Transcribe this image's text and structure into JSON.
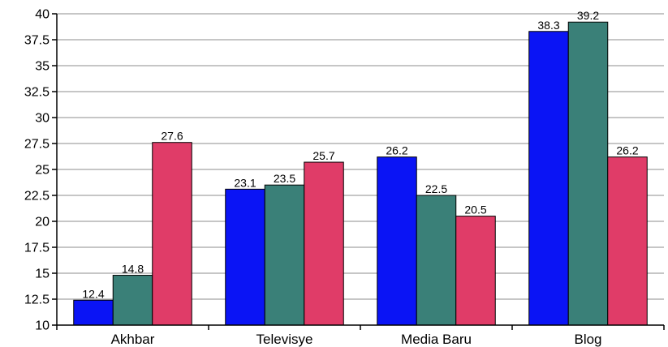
{
  "chart_data": {
    "type": "bar",
    "categories": [
      "Akhbar",
      "Televisye",
      "Media Baru",
      "Blog"
    ],
    "series": [
      {
        "color": "#0a14f5",
        "values": [
          12.4,
          23.1,
          26.2,
          38.3
        ]
      },
      {
        "color": "#3a8078",
        "values": [
          14.8,
          23.5,
          22.5,
          39.2
        ]
      },
      {
        "color": "#e03c68",
        "values": [
          27.6,
          25.7,
          20.5,
          26.2
        ]
      }
    ],
    "ylim": [
      10,
      40
    ],
    "yticks": [
      10,
      12.5,
      15,
      17.5,
      20,
      22.5,
      25,
      27.5,
      30,
      32.5,
      35,
      37.5,
      40
    ],
    "grid": true,
    "legend": "none",
    "title": "",
    "xlabel": "",
    "ylabel": ""
  }
}
